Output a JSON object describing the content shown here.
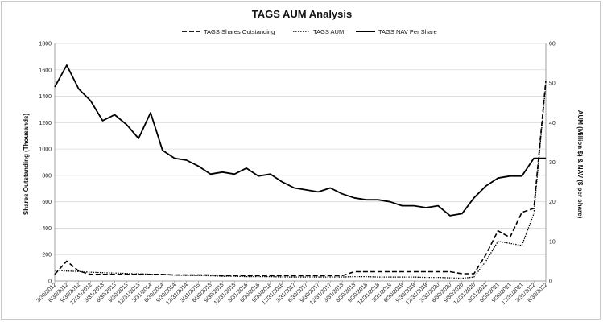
{
  "chart_data": {
    "type": "line",
    "title": "TAGS AUM Analysis",
    "ylabel": "Shares Outstanding (Thousands)",
    "y2label": "AUM (Million $) & NAV ($ per share)",
    "ylim": [
      0,
      1800
    ],
    "y2lim": [
      0,
      60
    ],
    "yticks": [
      0,
      200,
      400,
      600,
      800,
      1000,
      1200,
      1400,
      1600,
      1800
    ],
    "y2ticks": [
      0,
      10,
      20,
      30,
      40,
      50,
      60
    ],
    "legend_position": "top-center",
    "x": [
      "3/30/2012",
      "6/30/2012",
      "9/30/2012",
      "12/31/2012",
      "3/31/2013",
      "6/30/2013",
      "9/30/2013",
      "12/31/2013",
      "3/31/2014",
      "6/30/2014",
      "9/30/2014",
      "12/31/2014",
      "3/31/2015",
      "6/30/2015",
      "9/30/2015",
      "12/31/2015",
      "3/31/2016",
      "6/30/2016",
      "9/30/2016",
      "12/31/2016",
      "3/31/2017",
      "6/30/2017",
      "9/30/2017",
      "12/31/2017",
      "3/31/2018",
      "6/30/2018",
      "9/30/2018",
      "12/31/2018",
      "3/31/2019",
      "6/30/2019",
      "9/30/2019",
      "12/31/2019",
      "3/31/2020",
      "6/30/2020",
      "9/30/2020",
      "12/31/2020",
      "3/31/2021",
      "6/30/2021",
      "9/30/2021",
      "12/31/2021",
      "3/31/2022",
      "6/30/2022"
    ],
    "series": [
      {
        "name": "TAGS Shares Outstanding",
        "axis": "left",
        "style": "dashed",
        "values": [
          50,
          150,
          75,
          50,
          50,
          50,
          50,
          50,
          50,
          50,
          45,
          45,
          45,
          45,
          40,
          40,
          40,
          40,
          40,
          40,
          40,
          40,
          40,
          40,
          40,
          70,
          70,
          70,
          70,
          70,
          70,
          70,
          70,
          70,
          55,
          55,
          200,
          380,
          330,
          520,
          550,
          1520
        ]
      },
      {
        "name": "TAGS AUM",
        "axis": "right",
        "style": "dotted",
        "values": [
          2.7,
          2.5,
          2.4,
          2.2,
          2.1,
          2.0,
          1.9,
          1.8,
          1.7,
          1.6,
          1.5,
          1.4,
          1.4,
          1.3,
          1.2,
          1.2,
          1.1,
          1.1,
          1.1,
          1.0,
          1.0,
          1.0,
          1.0,
          1.0,
          1.0,
          1.1,
          1.1,
          1.0,
          1.0,
          1.0,
          1.0,
          0.9,
          0.9,
          0.8,
          0.7,
          1.0,
          5.0,
          10.0,
          9.5,
          9.0,
          17.0,
          50.0
        ]
      },
      {
        "name": "TAGS NAV Per Share",
        "axis": "right",
        "style": "solid",
        "values": [
          49.0,
          54.5,
          48.5,
          45.5,
          40.5,
          42.0,
          39.5,
          36.0,
          42.5,
          33.0,
          31.0,
          30.5,
          29.0,
          27.0,
          27.5,
          27.0,
          28.5,
          26.5,
          27.0,
          25.0,
          23.5,
          23.0,
          22.5,
          23.5,
          22.0,
          21.0,
          20.5,
          20.5,
          20.0,
          19.0,
          19.0,
          18.5,
          19.0,
          16.5,
          17.0,
          21.0,
          24.0,
          26.0,
          26.5,
          26.5,
          31.0,
          31.0
        ]
      }
    ]
  }
}
